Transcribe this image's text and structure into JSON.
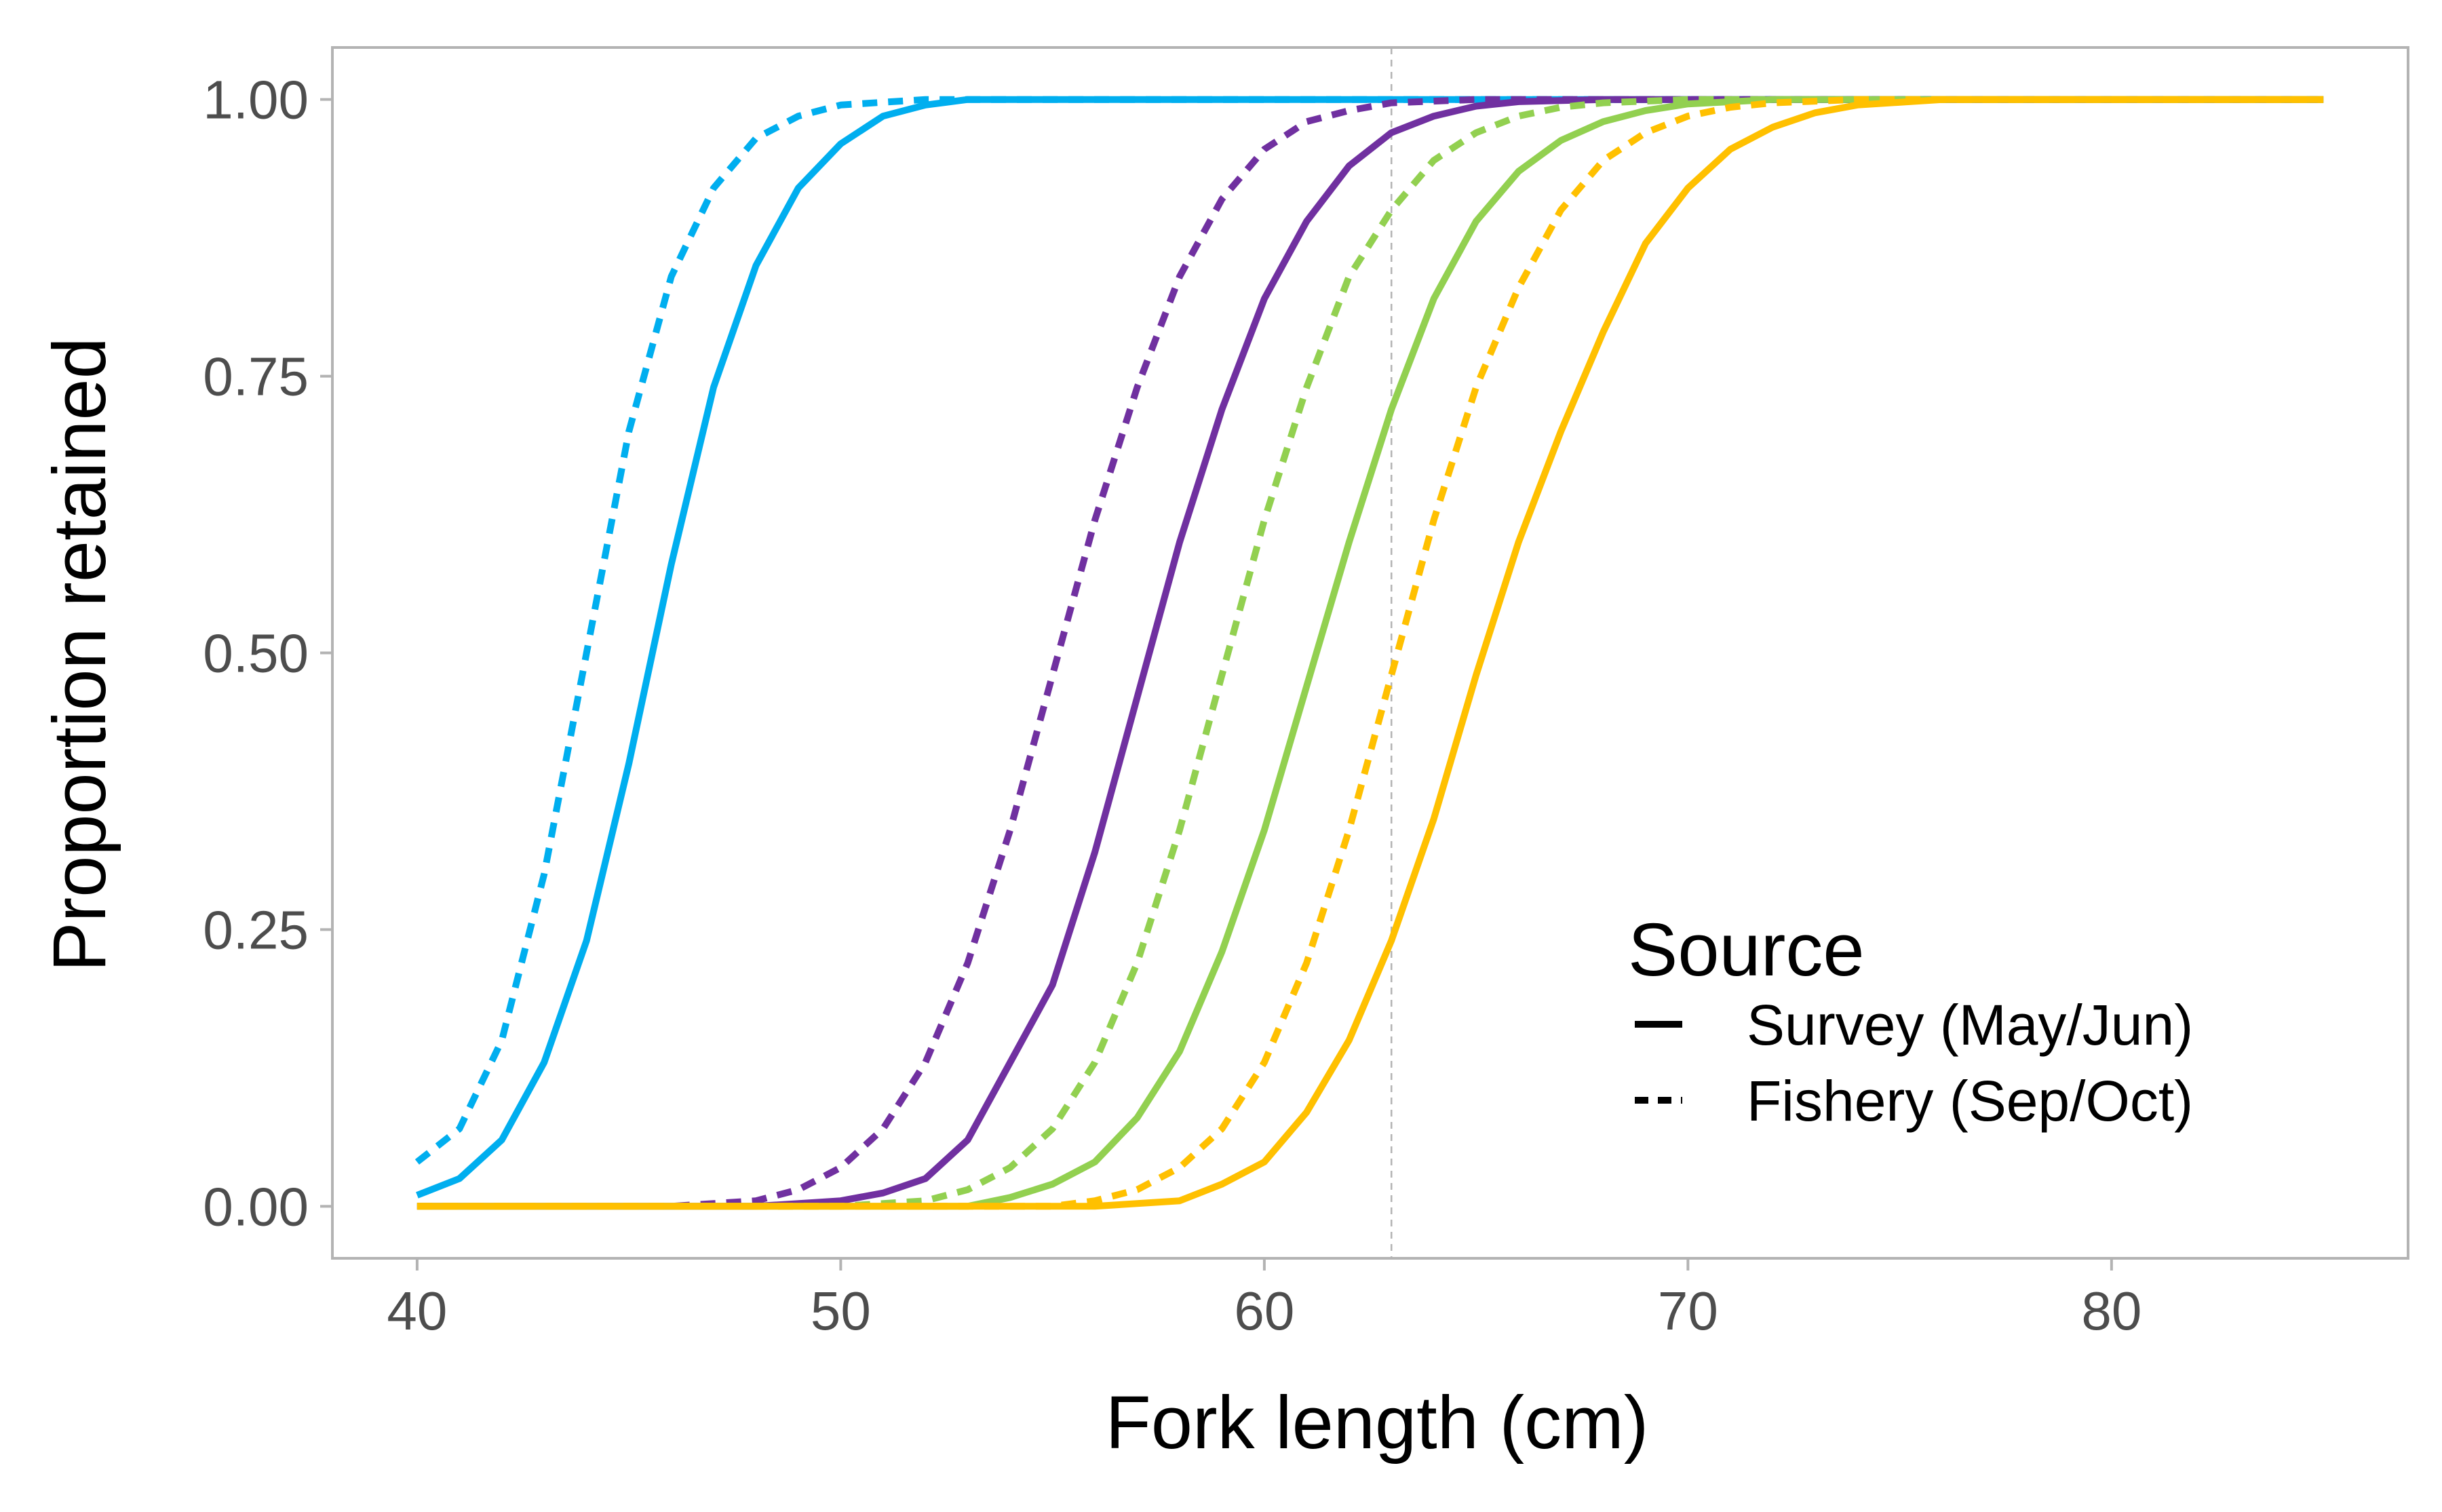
{
  "chart_data": {
    "type": "line",
    "xlabel": "Fork length (cm)",
    "ylabel": "Proportion retained",
    "xlim": [
      38,
      87
    ],
    "ylim": [
      -0.047,
      1.047
    ],
    "x_ticks": [
      40,
      50,
      60,
      70,
      80
    ],
    "y_ticks": [
      0,
      0.25,
      0.5,
      0.75,
      1
    ],
    "x_tick_labels": [
      "40",
      "50",
      "60",
      "70",
      "80"
    ],
    "y_tick_labels": [
      "0.00",
      "0.25",
      "0.50",
      "0.75",
      "1.00"
    ],
    "grid": false,
    "reference_line": {
      "x": 63
    },
    "legend": {
      "title": "Source",
      "position": "bottom-right-inside",
      "entries": [
        {
          "label": "Survey (May/Jun)",
          "linetype": "solid"
        },
        {
          "label": "Fishery (Sep/Oct)",
          "linetype": "dashed"
        }
      ]
    },
    "series": [
      {
        "color": "#00AEEF",
        "linetype": "dashed",
        "points": [
          [
            40,
            0.04
          ],
          [
            41,
            0.07
          ],
          [
            42,
            0.15
          ],
          [
            43,
            0.3
          ],
          [
            44,
            0.5
          ],
          [
            45,
            0.7
          ],
          [
            46,
            0.84
          ],
          [
            47,
            0.92
          ],
          [
            48,
            0.965
          ],
          [
            49,
            0.985
          ],
          [
            50,
            0.995
          ],
          [
            52,
            1
          ],
          [
            85,
            1
          ]
        ]
      },
      {
        "color": "#00AEEF",
        "linetype": "solid",
        "points": [
          [
            40,
            0.01
          ],
          [
            41,
            0.025
          ],
          [
            42,
            0.06
          ],
          [
            43,
            0.13
          ],
          [
            44,
            0.24
          ],
          [
            45,
            0.4
          ],
          [
            46,
            0.58
          ],
          [
            47,
            0.74
          ],
          [
            48,
            0.85
          ],
          [
            49,
            0.92
          ],
          [
            50,
            0.96
          ],
          [
            51,
            0.985
          ],
          [
            52,
            0.995
          ],
          [
            53,
            1
          ],
          [
            85,
            1
          ]
        ]
      },
      {
        "color": "#7030A0",
        "linetype": "dashed",
        "points": [
          [
            40,
            0
          ],
          [
            46,
            0
          ],
          [
            48,
            0.005
          ],
          [
            49,
            0.015
          ],
          [
            50,
            0.035
          ],
          [
            51,
            0.07
          ],
          [
            52,
            0.13
          ],
          [
            53,
            0.22
          ],
          [
            54,
            0.34
          ],
          [
            55,
            0.48
          ],
          [
            56,
            0.62
          ],
          [
            57,
            0.74
          ],
          [
            58,
            0.84
          ],
          [
            59,
            0.91
          ],
          [
            60,
            0.955
          ],
          [
            61,
            0.98
          ],
          [
            62,
            0.99
          ],
          [
            63,
            0.997
          ],
          [
            65,
            1
          ],
          [
            85,
            1
          ]
        ]
      },
      {
        "color": "#7030A0",
        "linetype": "solid",
        "points": [
          [
            40,
            0
          ],
          [
            48,
            0
          ],
          [
            50,
            0.005
          ],
          [
            51,
            0.012
          ],
          [
            52,
            0.025
          ],
          [
            53,
            0.06
          ],
          [
            54,
            0.13
          ],
          [
            55,
            0.2
          ],
          [
            56,
            0.32
          ],
          [
            57,
            0.46
          ],
          [
            58,
            0.6
          ],
          [
            59,
            0.72
          ],
          [
            60,
            0.82
          ],
          [
            61,
            0.89
          ],
          [
            62,
            0.94
          ],
          [
            63,
            0.97
          ],
          [
            64,
            0.985
          ],
          [
            65,
            0.994
          ],
          [
            66,
            0.998
          ],
          [
            68,
            1
          ],
          [
            85,
            1
          ]
        ]
      },
      {
        "color": "#92D050",
        "linetype": "dashed",
        "points": [
          [
            40,
            0
          ],
          [
            50,
            0
          ],
          [
            52,
            0.005
          ],
          [
            53,
            0.015
          ],
          [
            54,
            0.035
          ],
          [
            55,
            0.07
          ],
          [
            56,
            0.13
          ],
          [
            57,
            0.22
          ],
          [
            58,
            0.34
          ],
          [
            59,
            0.48
          ],
          [
            60,
            0.62
          ],
          [
            61,
            0.74
          ],
          [
            62,
            0.84
          ],
          [
            63,
            0.9
          ],
          [
            64,
            0.945
          ],
          [
            65,
            0.97
          ],
          [
            66,
            0.985
          ],
          [
            67,
            0.993
          ],
          [
            68,
            0.997
          ],
          [
            70,
            1
          ],
          [
            85,
            1
          ]
        ]
      },
      {
        "color": "#92D050",
        "linetype": "solid",
        "points": [
          [
            40,
            0
          ],
          [
            53,
            0
          ],
          [
            54,
            0.008
          ],
          [
            55,
            0.02
          ],
          [
            56,
            0.04
          ],
          [
            57,
            0.08
          ],
          [
            58,
            0.14
          ],
          [
            59,
            0.23
          ],
          [
            60,
            0.34
          ],
          [
            61,
            0.47
          ],
          [
            62,
            0.6
          ],
          [
            63,
            0.72
          ],
          [
            64,
            0.82
          ],
          [
            65,
            0.89
          ],
          [
            66,
            0.935
          ],
          [
            67,
            0.963
          ],
          [
            68,
            0.98
          ],
          [
            69,
            0.99
          ],
          [
            70,
            0.996
          ],
          [
            72,
            1
          ],
          [
            85,
            1
          ]
        ]
      },
      {
        "color": "#FFC000",
        "linetype": "dashed",
        "points": [
          [
            40,
            0
          ],
          [
            55,
            0
          ],
          [
            56,
            0.005
          ],
          [
            57,
            0.015
          ],
          [
            58,
            0.035
          ],
          [
            59,
            0.07
          ],
          [
            60,
            0.13
          ],
          [
            61,
            0.22
          ],
          [
            62,
            0.34
          ],
          [
            63,
            0.48
          ],
          [
            64,
            0.62
          ],
          [
            65,
            0.74
          ],
          [
            66,
            0.83
          ],
          [
            67,
            0.9
          ],
          [
            68,
            0.945
          ],
          [
            69,
            0.97
          ],
          [
            70,
            0.985
          ],
          [
            71,
            0.993
          ],
          [
            72,
            0.997
          ],
          [
            74,
            1
          ],
          [
            85,
            1
          ]
        ]
      },
      {
        "color": "#FFC000",
        "linetype": "solid",
        "points": [
          [
            40,
            0
          ],
          [
            56,
            0
          ],
          [
            58,
            0.005
          ],
          [
            59,
            0.02
          ],
          [
            60,
            0.04
          ],
          [
            61,
            0.085
          ],
          [
            62,
            0.15
          ],
          [
            63,
            0.24
          ],
          [
            64,
            0.35
          ],
          [
            65,
            0.48
          ],
          [
            66,
            0.6
          ],
          [
            67,
            0.7
          ],
          [
            68,
            0.79
          ],
          [
            69,
            0.87
          ],
          [
            70,
            0.92
          ],
          [
            71,
            0.955
          ],
          [
            72,
            0.975
          ],
          [
            73,
            0.988
          ],
          [
            74,
            0.995
          ],
          [
            76,
            1
          ],
          [
            85,
            1
          ]
        ]
      }
    ]
  }
}
